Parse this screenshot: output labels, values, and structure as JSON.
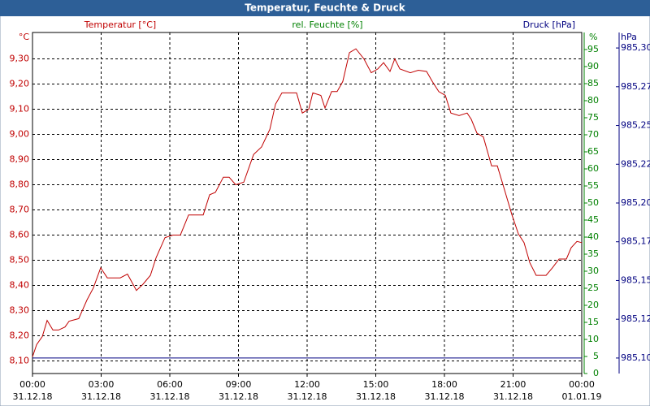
{
  "chart_data": {
    "type": "line",
    "title": "Temperatur, Feuchte & Druck",
    "ylabel": "Temperatur [°C]",
    "yunit": "°C",
    "y3label": "rel. Feuchte [%]",
    "y3unit": "%",
    "y2label": "Druck [hPa]",
    "y2unit": "hPa",
    "xlim": [
      0,
      24
    ],
    "xticks": [
      {
        "value": 0,
        "label": "00:00",
        "date": "31.12.18"
      },
      {
        "value": 3,
        "label": "03:00",
        "date": "31.12.18"
      },
      {
        "value": 6,
        "label": "06:00",
        "date": "31.12.18"
      },
      {
        "value": 9,
        "label": "09:00",
        "date": "31.12.18"
      },
      {
        "value": 12,
        "label": "12:00",
        "date": "31.12.18"
      },
      {
        "value": 15,
        "label": "15:00",
        "date": "31.12.18"
      },
      {
        "value": 18,
        "label": "18:00",
        "date": "31.12.18"
      },
      {
        "value": 21,
        "label": "21:00",
        "date": "31.12.18"
      },
      {
        "value": 24,
        "label": "00:00",
        "date": "01.01.19"
      }
    ],
    "ylim": [
      8.05,
      9.405
    ],
    "yticks": [
      {
        "value": 8.1,
        "label": "8,10"
      },
      {
        "value": 8.2,
        "label": "8,20"
      },
      {
        "value": 8.3,
        "label": "8,30"
      },
      {
        "value": 8.4,
        "label": "8,40"
      },
      {
        "value": 8.5,
        "label": "8,50"
      },
      {
        "value": 8.6,
        "label": "8,60"
      },
      {
        "value": 8.7,
        "label": "8,70"
      },
      {
        "value": 8.8,
        "label": "8,80"
      },
      {
        "value": 8.9,
        "label": "8,90"
      },
      {
        "value": 9.0,
        "label": "9,00"
      },
      {
        "value": 9.1,
        "label": "9,10"
      },
      {
        "value": 9.2,
        "label": "9,20"
      },
      {
        "value": 9.3,
        "label": "9,30"
      }
    ],
    "y3lim": [
      0,
      100
    ],
    "y3ticks": [
      0,
      5,
      10,
      15,
      20,
      25,
      30,
      35,
      40,
      45,
      50,
      55,
      60,
      65,
      70,
      75,
      80,
      85,
      90,
      95
    ],
    "y2lim": [
      985.09,
      985.31
    ],
    "y2ticks": [
      {
        "value": 985.1,
        "label": "985,10"
      },
      {
        "value": 985.125,
        "label": "985,12"
      },
      {
        "value": 985.15,
        "label": "985,15"
      },
      {
        "value": 985.175,
        "label": "985,17"
      },
      {
        "value": 985.2,
        "label": "985,20"
      },
      {
        "value": 985.225,
        "label": "985,22"
      },
      {
        "value": 985.25,
        "label": "985,25"
      },
      {
        "value": 985.275,
        "label": "985,27"
      },
      {
        "value": 985.3,
        "label": "985,30"
      }
    ],
    "grid": true,
    "colors": {
      "y": "#c00000",
      "y3": "#008000",
      "y2": "#000080"
    },
    "series": [
      {
        "name": "Temperatur [°C]",
        "color": "#c00000",
        "axis": "y",
        "x": [
          0,
          0.18,
          0.43,
          0.64,
          0.89,
          1.14,
          1.42,
          1.6,
          2.02,
          2.38,
          2.66,
          2.98,
          3.27,
          3.83,
          4.15,
          4.54,
          4.83,
          5.15,
          5.4,
          5.79,
          6.14,
          6.46,
          6.82,
          7.46,
          7.74,
          7.99,
          8.34,
          8.59,
          8.88,
          9.23,
          9.66,
          10.01,
          10.37,
          10.62,
          10.9,
          11.54,
          11.79,
          12.07,
          12.25,
          12.6,
          12.78,
          13.07,
          13.31,
          13.56,
          13.85,
          14.13,
          14.48,
          14.8,
          15.09,
          15.34,
          15.62,
          15.83,
          16.05,
          16.51,
          16.86,
          17.22,
          17.47,
          17.75,
          18.04,
          18.28,
          18.64,
          18.99,
          19.17,
          19.42,
          19.7,
          20.06,
          20.31,
          20.59,
          20.95,
          21.23,
          21.48,
          21.73,
          22.01,
          22.44,
          22.72,
          23.01,
          23.33,
          23.54,
          23.79,
          24
        ],
        "values": [
          8.116,
          8.165,
          8.197,
          8.261,
          8.223,
          8.223,
          8.235,
          8.258,
          8.268,
          8.342,
          8.39,
          8.47,
          8.43,
          8.43,
          8.445,
          8.38,
          8.405,
          8.44,
          8.51,
          8.59,
          8.6,
          8.6,
          8.68,
          8.68,
          8.76,
          8.77,
          8.83,
          8.83,
          8.8,
          8.81,
          8.92,
          8.95,
          9.02,
          9.12,
          9.165,
          9.165,
          9.085,
          9.1,
          9.165,
          9.155,
          9.105,
          9.17,
          9.17,
          9.21,
          9.325,
          9.34,
          9.3,
          9.245,
          9.26,
          9.285,
          9.25,
          9.3,
          9.26,
          9.245,
          9.255,
          9.25,
          9.21,
          9.17,
          9.155,
          9.085,
          9.075,
          9.085,
          9.06,
          9.005,
          8.99,
          8.875,
          8.875,
          8.79,
          8.68,
          8.605,
          8.57,
          8.49,
          8.44,
          8.44,
          8.47,
          8.505,
          8.505,
          8.55,
          8.575,
          8.57
        ]
      },
      {
        "name": "Druck [hPa]",
        "color": "#000080",
        "axis": "y2",
        "x": [
          0,
          24
        ],
        "values": [
          985.1,
          985.1
        ]
      }
    ]
  }
}
